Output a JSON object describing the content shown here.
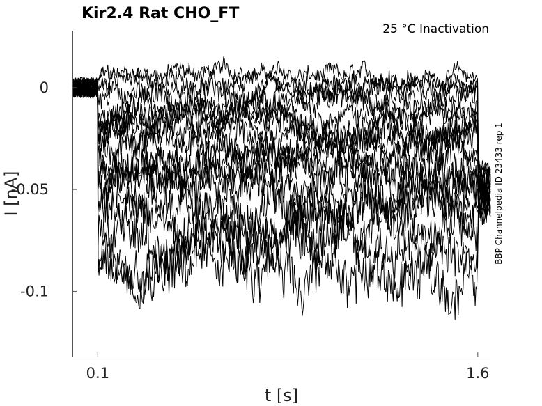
{
  "chart_data": {
    "type": "line",
    "title": "Kir2.4  Rat  CHO_FT",
    "subtitle": "25 °C  Inactivation",
    "xlabel": "t [s]",
    "ylabel": "I [nA]",
    "side_note": "BBP Channelpedia ID 23433 rep 1",
    "xlim": [
      0.0,
      1.65
    ],
    "ylim": [
      -0.132,
      0.028
    ],
    "x_ticks": [
      {
        "value": 0.1,
        "label": "0.1"
      },
      {
        "value": 1.6,
        "label": "1.6"
      }
    ],
    "y_ticks": [
      {
        "value": 0,
        "label": "0"
      },
      {
        "value": -0.05,
        "label": "-0.05"
      },
      {
        "value": -0.1,
        "label": "-0.1"
      }
    ],
    "grid": false,
    "line_color": "#000000",
    "sweep_pulse": {
      "start": 0.1,
      "end": 1.6,
      "return": 1.7
    },
    "series": [
      {
        "step_level": 0.006,
        "noise": 0.003
      },
      {
        "step_level": 0.002,
        "noise": 0.003
      },
      {
        "step_level": -0.002,
        "noise": 0.004
      },
      {
        "step_level": -0.006,
        "noise": 0.004
      },
      {
        "step_level": -0.01,
        "noise": 0.004
      },
      {
        "step_level": -0.014,
        "noise": 0.004
      },
      {
        "step_level": -0.018,
        "noise": 0.005
      },
      {
        "step_level": -0.022,
        "noise": 0.005
      },
      {
        "step_level": -0.026,
        "noise": 0.005
      },
      {
        "step_level": -0.03,
        "noise": 0.005
      },
      {
        "step_level": -0.035,
        "noise": 0.006
      },
      {
        "step_level": -0.04,
        "noise": 0.006
      },
      {
        "step_level": -0.045,
        "noise": 0.006
      },
      {
        "step_level": -0.05,
        "noise": 0.006
      },
      {
        "step_level": -0.056,
        "noise": 0.007
      },
      {
        "step_level": -0.063,
        "noise": 0.007
      },
      {
        "step_level": -0.071,
        "noise": 0.008
      },
      {
        "step_level": -0.08,
        "noise": 0.008
      },
      {
        "step_level": -0.09,
        "noise": 0.009
      }
    ]
  }
}
